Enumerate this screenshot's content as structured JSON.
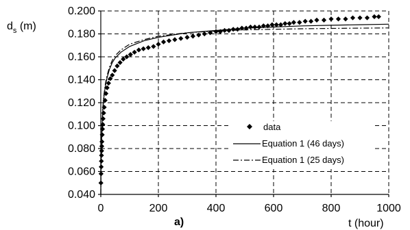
{
  "chart_data": {
    "type": "scatter",
    "panel_label": "a)",
    "xlabel": "t (hour)",
    "ylabel_main": "d",
    "ylabel_sub": "s",
    "ylabel_unit": " (m)",
    "xlim": [
      0,
      1000
    ],
    "ylim": [
      0.04,
      0.2
    ],
    "xticks": [
      0,
      200,
      400,
      600,
      800,
      1000
    ],
    "xtick_labels": [
      "0",
      "200",
      "400",
      "600",
      "800",
      "1000"
    ],
    "yticks": [
      0.04,
      0.06,
      0.08,
      0.1,
      0.12,
      0.14,
      0.16,
      0.18,
      0.2
    ],
    "ytick_labels": [
      "0.040",
      "0.060",
      "0.080",
      "0.100",
      "0.120",
      "0.140",
      "0.160",
      "0.180",
      "0.200"
    ],
    "grid": true,
    "legend_position": "center-right",
    "series": [
      {
        "name": "data",
        "style": "markers",
        "marker": "diamond",
        "x": [
          0.5,
          1,
          1.5,
          2,
          2.5,
          3,
          3.5,
          4,
          5,
          6,
          7,
          8,
          10,
          12,
          15,
          18,
          22,
          27,
          33,
          40,
          48,
          57,
          67,
          78,
          90,
          103,
          117,
          132,
          148,
          165,
          183,
          200,
          218,
          237,
          257,
          278,
          300,
          320,
          340,
          360,
          380,
          400,
          415,
          430,
          445,
          460,
          475,
          490,
          505,
          520,
          535,
          550,
          565,
          580,
          595,
          610,
          625,
          640,
          655,
          670,
          690,
          710,
          730,
          750,
          775,
          800,
          825,
          850,
          875,
          900,
          925,
          950,
          965
        ],
        "y": [
          0.05,
          0.058,
          0.064,
          0.069,
          0.074,
          0.078,
          0.082,
          0.086,
          0.092,
          0.097,
          0.101,
          0.106,
          0.111,
          0.116,
          0.122,
          0.128,
          0.133,
          0.137,
          0.141,
          0.144,
          0.148,
          0.152,
          0.155,
          0.158,
          0.16,
          0.162,
          0.164,
          0.166,
          0.167,
          0.168,
          0.169,
          0.171,
          0.173,
          0.174,
          0.175,
          0.176,
          0.177,
          0.178,
          0.179,
          0.18,
          0.181,
          0.182,
          0.182,
          0.183,
          0.183,
          0.184,
          0.184,
          0.185,
          0.185,
          0.186,
          0.186,
          0.186,
          0.187,
          0.187,
          0.188,
          0.188,
          0.188,
          0.189,
          0.189,
          0.19,
          0.19,
          0.191,
          0.191,
          0.192,
          0.192,
          0.193,
          0.193,
          0.193,
          0.194,
          0.194,
          0.194,
          0.195,
          0.195
        ]
      },
      {
        "name": "Equation 1 (46 days)",
        "style": "solid",
        "x": [
          0,
          1,
          2,
          3,
          5,
          7,
          10,
          15,
          20,
          30,
          40,
          50,
          70,
          100,
          150,
          200,
          250,
          300,
          400,
          500,
          600,
          700,
          800,
          900,
          1000
        ],
        "y": [
          0.04,
          0.066,
          0.081,
          0.091,
          0.104,
          0.113,
          0.123,
          0.133,
          0.14,
          0.149,
          0.155,
          0.159,
          0.164,
          0.169,
          0.174,
          0.177,
          0.179,
          0.181,
          0.183,
          0.185,
          0.186,
          0.187,
          0.1875,
          0.188,
          0.1885
        ]
      },
      {
        "name": "Equation 1 (25 days)",
        "style": "dash-dot",
        "x": [
          0,
          1,
          2,
          3,
          5,
          7,
          10,
          15,
          20,
          30,
          40,
          50,
          70,
          100,
          150,
          200,
          250,
          300,
          400,
          500,
          600,
          700,
          800,
          900,
          1000
        ],
        "y": [
          0.04,
          0.068,
          0.083,
          0.093,
          0.106,
          0.115,
          0.125,
          0.135,
          0.142,
          0.151,
          0.157,
          0.161,
          0.166,
          0.171,
          0.175,
          0.178,
          0.1795,
          0.181,
          0.1825,
          0.1835,
          0.184,
          0.1845,
          0.1848,
          0.185,
          0.1852
        ]
      }
    ]
  }
}
